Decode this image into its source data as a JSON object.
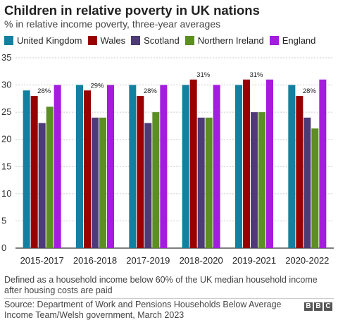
{
  "chart_data": {
    "type": "bar",
    "title": "Children in relative poverty in UK nations",
    "subtitle": "% in relative income poverty, three-year averages",
    "categories": [
      "2015-2017",
      "2016-2018",
      "2017-2019",
      "2018-2020",
      "2019-2021",
      "2020-2022"
    ],
    "series": [
      {
        "name": "United Kingdom",
        "color": "#1380a1",
        "values": [
          29,
          30,
          30,
          30,
          30,
          30
        ]
      },
      {
        "name": "Wales",
        "color": "#990000",
        "values": [
          28,
          29,
          28,
          31,
          31,
          28
        ]
      },
      {
        "name": "Scotland",
        "color": "#4d3b77",
        "values": [
          23,
          24,
          23,
          24,
          25,
          24
        ]
      },
      {
        "name": "Northern Ireland",
        "color": "#5b8f22",
        "values": [
          26,
          24,
          25,
          24,
          25,
          22
        ]
      },
      {
        "name": "England",
        "color": "#a51be0",
        "values": [
          30,
          30,
          30,
          30,
          31,
          31
        ]
      }
    ],
    "annotations": [
      {
        "category": "2015-2017",
        "series": "Wales",
        "text": "28%"
      },
      {
        "category": "2016-2018",
        "series": "Wales",
        "text": "29%"
      },
      {
        "category": "2017-2019",
        "series": "Wales",
        "text": "28%"
      },
      {
        "category": "2018-2020",
        "series": "Wales",
        "text": "31%"
      },
      {
        "category": "2019-2021",
        "series": "Wales",
        "text": "31%"
      },
      {
        "category": "2020-2022",
        "series": "Wales",
        "text": "28%"
      }
    ],
    "yticks": [
      "0",
      "5",
      "10",
      "15",
      "20",
      "25",
      "30",
      "35"
    ],
    "ylim": [
      0,
      35
    ],
    "grid": true,
    "legend_position": "top-left"
  },
  "footnote": "Defined as a household income below 60% of the UK median household income after housing costs are paid",
  "source": "Source: Department of Work and Pensions Households Below Average Income Team/Welsh government, March 2023",
  "logo": {
    "letters": [
      "B",
      "B",
      "C"
    ]
  }
}
